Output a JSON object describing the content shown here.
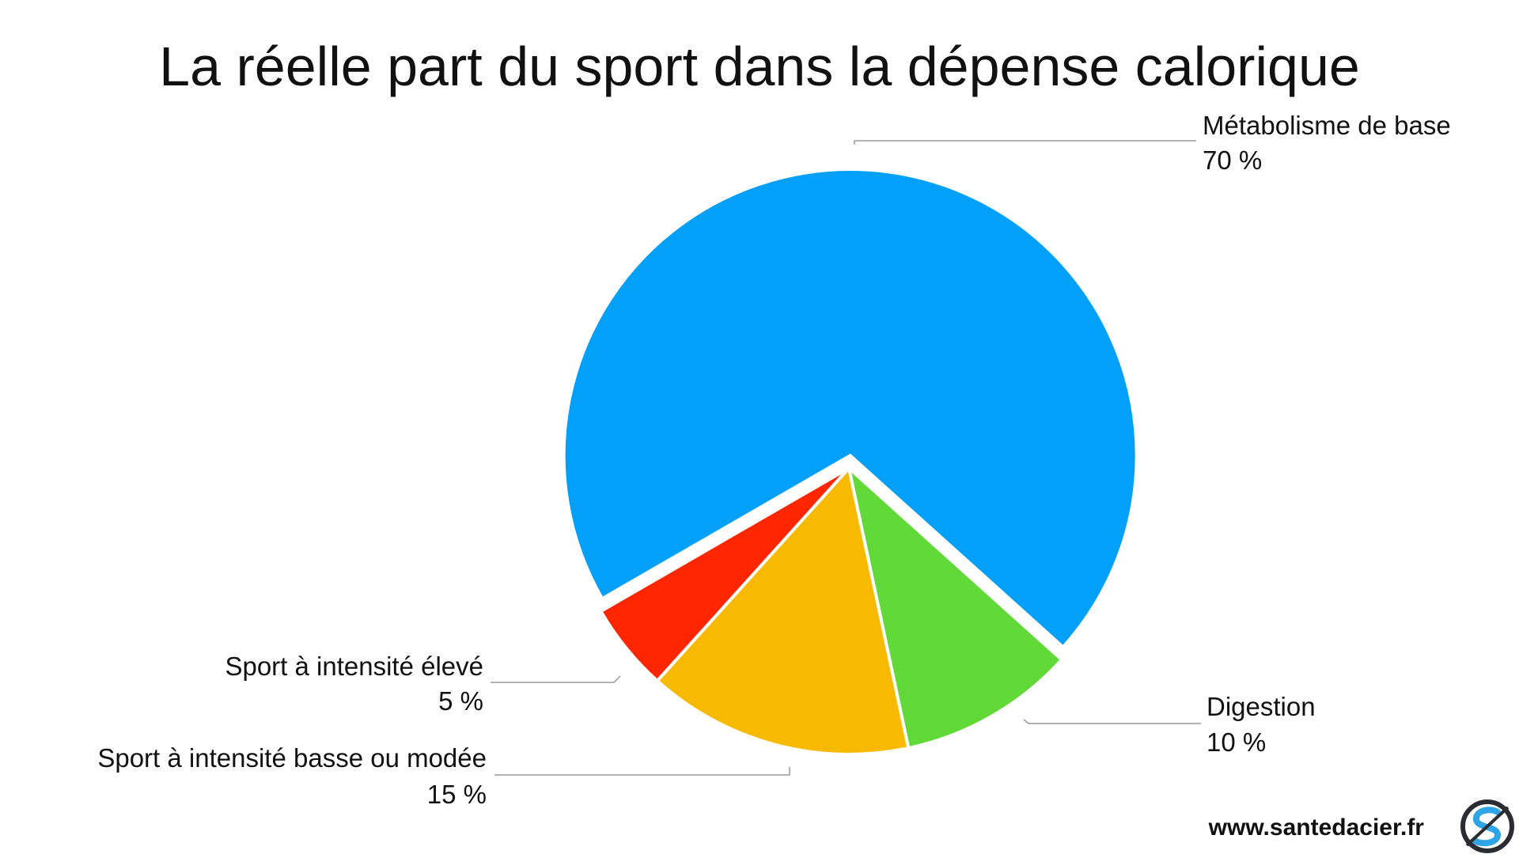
{
  "chart_data": {
    "type": "pie",
    "title": "La réelle part du sport dans la dépense calorique",
    "start_angle_deg": 240,
    "direction": "clockwise",
    "exploded_slice": "Métabolisme de base",
    "slices": [
      {
        "label": "Métabolisme de base",
        "value": 70,
        "value_label": "70 %",
        "color": "#03A0FA"
      },
      {
        "label": "Digestion",
        "value": 10,
        "value_label": "10 %",
        "color": "#61D938"
      },
      {
        "label": "Sport à intensité basse ou modée",
        "value": 15,
        "value_label": "15 %",
        "color": "#F8BA00"
      },
      {
        "label": "Sport à intensité élevé",
        "value": 5,
        "value_label": "5 %",
        "color": "#FF2600"
      }
    ]
  },
  "footer": {
    "website": "www.santedacier.fr",
    "logo_icon": "santedacier-s-logo-icon",
    "logo_colors": {
      "ring": "#2B2D33",
      "letter": "#2FA4E7"
    }
  }
}
